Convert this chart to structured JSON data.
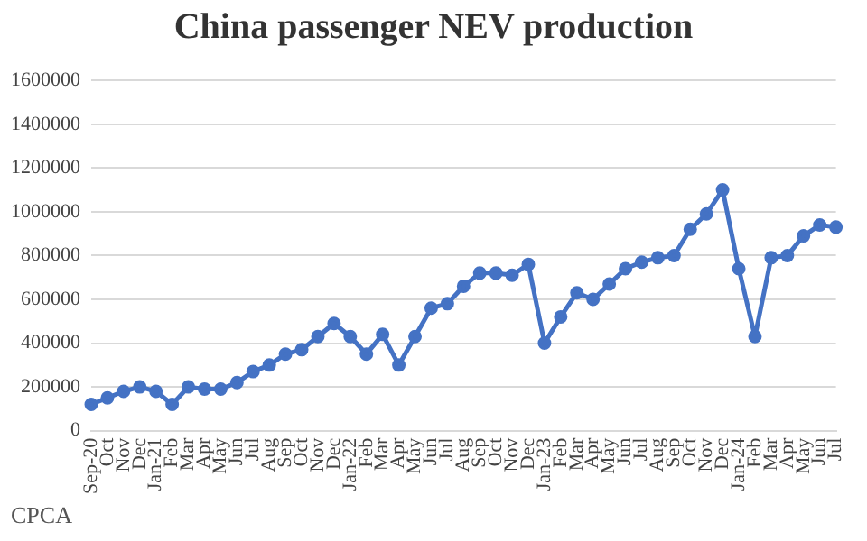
{
  "chart_data": {
    "type": "line",
    "title": "China passenger NEV production",
    "categories": [
      "Sep-20",
      "Oct",
      "Nov",
      "Dec",
      "Jan-21",
      "Feb",
      "Mar",
      "Apr",
      "May",
      "Jun",
      "Jul",
      "Aug",
      "Sep",
      "Oct",
      "Nov",
      "Dec",
      "Jan-22",
      "Feb",
      "Mar",
      "Apr",
      "May",
      "Jun",
      "Jul",
      "Aug",
      "Sep",
      "Oct",
      "Nov",
      "Dec",
      "Jan-23",
      "Feb",
      "Mar",
      "Apr",
      "May",
      "Jun",
      "Jul",
      "Aug",
      "Sep",
      "Oct",
      "Nov",
      "Dec",
      "Jan-24",
      "Feb",
      "Mar",
      "Apr",
      "May",
      "Jun",
      "Jul"
    ],
    "series": [
      {
        "color": "#4472c4",
        "values": [
          120000,
          150000,
          180000,
          200000,
          180000,
          120000,
          200000,
          190000,
          190000,
          220000,
          270000,
          300000,
          350000,
          370000,
          430000,
          490000,
          430000,
          350000,
          440000,
          300000,
          430000,
          560000,
          580000,
          660000,
          720000,
          720000,
          710000,
          760000,
          400000,
          520000,
          630000,
          600000,
          670000,
          740000,
          770000,
          790000,
          800000,
          920000,
          990000,
          1100000,
          740000,
          430000,
          790000,
          800000,
          890000,
          940000,
          930000
        ]
      }
    ],
    "ylim": [
      0,
      1600000
    ],
    "yticks": [
      0,
      200000,
      400000,
      600000,
      800000,
      1000000,
      1200000,
      1400000,
      1600000
    ],
    "grid": "y",
    "legend": false,
    "marker": "circle",
    "line_style": "solid",
    "annotations": [
      "CPCA"
    ]
  }
}
